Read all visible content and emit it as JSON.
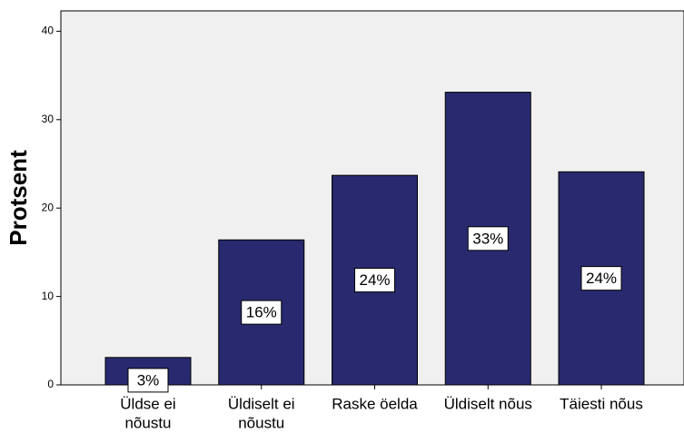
{
  "chart_data": {
    "type": "bar",
    "y_label": "Protsent",
    "categories": [
      [
        "Üldse ei",
        "nõustu"
      ],
      [
        "Üldiselt ei",
        "nõustu"
      ],
      [
        "Raske öelda"
      ],
      [
        "Üldiselt nõus"
      ],
      [
        "Täiesti nõus"
      ]
    ],
    "values": [
      3.1,
      16.4,
      23.7,
      33.1,
      24.1
    ],
    "value_labels": [
      "3%",
      "16%",
      "24%",
      "33%",
      "24%"
    ],
    "color": "#29296f",
    "ylim": [
      0,
      42.3
    ],
    "yticks": [
      0,
      10,
      20,
      30,
      40
    ],
    "grid": false
  }
}
